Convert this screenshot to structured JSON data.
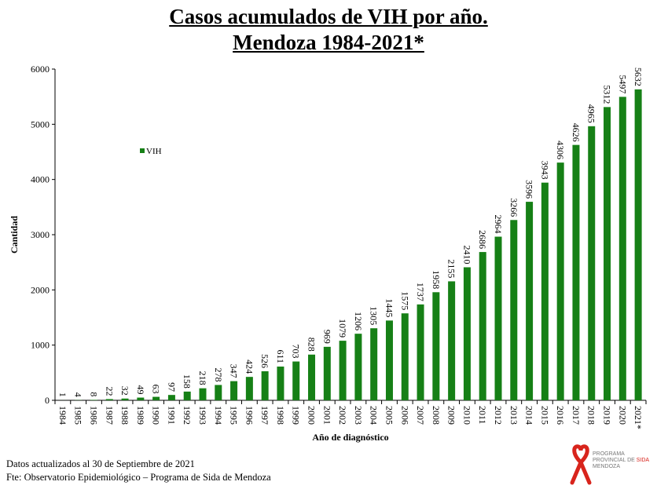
{
  "title_line1": "Casos acumulados de VIH por año.",
  "title_line2": "Mendoza 1984-2021*",
  "footer": {
    "line1": "Datos actualizados  al 30 de Septiembre  de 2021",
    "line2": "Fte: Observatorio  Epidemiológico  – Programa  de Sida de Mendoza"
  },
  "logo": {
    "line1": "PROGRAMA",
    "line2a": "PROVINCIAL DE ",
    "line2b": "SIDA",
    "line3": "MENDOZA"
  },
  "colors": {
    "bar": "#168016",
    "logo_red": "#d8241c"
  },
  "chart_data": {
    "type": "bar",
    "title": "Casos acumulados de VIH por año. Mendoza 1984-2021*",
    "xlabel": "Año de diagnóstico",
    "ylabel": "Cantidad",
    "ylim": [
      0,
      6000
    ],
    "yticks": [
      0,
      1000,
      2000,
      3000,
      4000,
      5000,
      6000
    ],
    "legend": {
      "label": "VIH",
      "placement": "upper-left"
    },
    "categories": [
      "1984",
      "1985",
      "1986",
      "1987",
      "1988",
      "1989",
      "1990",
      "1991",
      "1992",
      "1993",
      "1994",
      "1995",
      "1996",
      "1997",
      "1998",
      "1999",
      "2000",
      "2001",
      "2002",
      "2003",
      "2004",
      "2005",
      "2006",
      "2007",
      "2008",
      "2009",
      "2010",
      "2011",
      "2012",
      "2013",
      "2014",
      "2015",
      "2016",
      "2017",
      "2018",
      "2019",
      "2020",
      "2021*"
    ],
    "values": [
      1,
      4,
      8,
      22,
      32,
      49,
      63,
      97,
      158,
      218,
      278,
      347,
      424,
      526,
      611,
      703,
      828,
      969,
      1079,
      1206,
      1305,
      1445,
      1575,
      1737,
      1958,
      2155,
      2410,
      2686,
      2964,
      3266,
      3596,
      3943,
      4306,
      4626,
      4965,
      5312,
      5497,
      5632
    ]
  }
}
